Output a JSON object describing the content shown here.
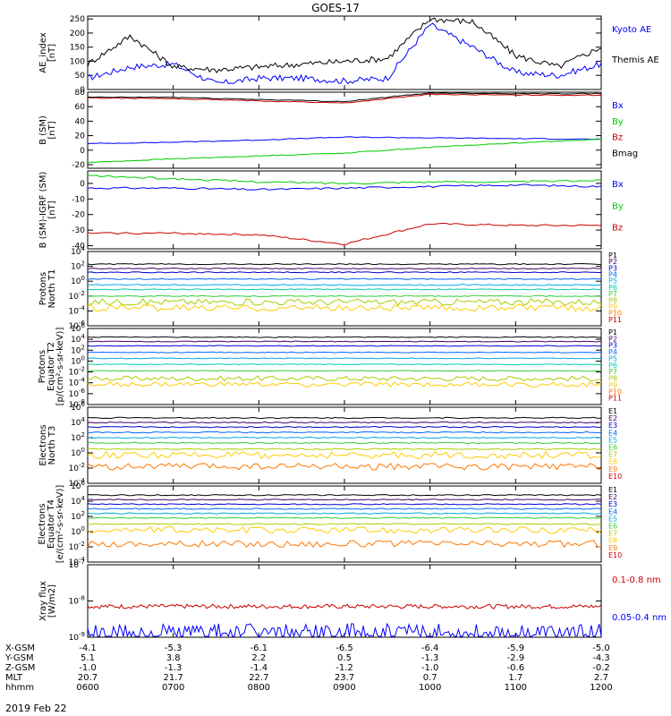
{
  "title": "GOES-17",
  "date": "2019 Feb 22",
  "colors": {
    "axis": "#000000",
    "black": "#000000",
    "blue": "#0000ff",
    "red": "#cc0000",
    "green": "#00cc00"
  },
  "x_axis": {
    "range": [
      "0600",
      "1200"
    ],
    "hhmm": [
      "0600",
      "0700",
      "0800",
      "0900",
      "1000",
      "1100",
      "1200"
    ],
    "rows": [
      {
        "label": "X-GSM",
        "values": [
          "-4.1",
          "-5.3",
          "-6.1",
          "-6.5",
          "-6.4",
          "-5.9",
          "-5.0"
        ]
      },
      {
        "label": "Y-GSM",
        "values": [
          "5.1",
          "3.8",
          "2.2",
          "0.5",
          "-1.3",
          "-2.9",
          "-4.3"
        ]
      },
      {
        "label": "Z-GSM",
        "values": [
          "-1.0",
          "-1.3",
          "-1.4",
          "-1.2",
          "-1.0",
          "-0.6",
          "-0.2"
        ]
      },
      {
        "label": "MLT",
        "values": [
          "20.7",
          "21.7",
          "22.7",
          "23.7",
          "0.7",
          "1.7",
          "2.7"
        ]
      },
      {
        "label": "hhmm",
        "values": [
          "0600",
          "0700",
          "0800",
          "0900",
          "1000",
          "1100",
          "1200"
        ]
      }
    ]
  },
  "chart_data": [
    {
      "type": "line",
      "ylabel": [
        "AE_index",
        "[nT]"
      ],
      "ylim": [
        0,
        260
      ],
      "yticks": [
        "0",
        "50",
        "100",
        "150",
        "200",
        "250"
      ],
      "x": [
        "0600",
        "0630",
        "0700",
        "0730",
        "0800",
        "0830",
        "0900",
        "0930",
        "1000",
        "1030",
        "1100",
        "1130",
        "1200"
      ],
      "series": [
        {
          "name": "Kyoto AE",
          "color": "#0000ff",
          "values": [
            40,
            80,
            90,
            20,
            40,
            40,
            30,
            40,
            230,
            150,
            60,
            50,
            90
          ]
        },
        {
          "name": "Themis AE",
          "color": "#000000",
          "values": [
            90,
            190,
            80,
            70,
            80,
            90,
            100,
            110,
            250,
            240,
            120,
            80,
            150
          ]
        }
      ]
    },
    {
      "type": "line",
      "ylabel": [
        "B (SM)",
        "[nT]"
      ],
      "ylim": [
        -25,
        80
      ],
      "yticks": [
        "-20",
        "0",
        "20",
        "40",
        "60",
        "80"
      ],
      "x": [
        "0600",
        "0700",
        "0800",
        "0900",
        "1000",
        "1100",
        "1200"
      ],
      "series": [
        {
          "name": "Bx",
          "color": "#0000ff",
          "values": [
            9,
            11,
            14,
            18,
            17,
            16,
            15
          ]
        },
        {
          "name": "By",
          "color": "#00cc00",
          "values": [
            -17,
            -12,
            -8,
            -4,
            4,
            10,
            15
          ]
        },
        {
          "name": "Bz",
          "color": "#cc0000",
          "values": [
            72,
            71,
            68,
            65,
            77,
            76,
            76
          ]
        },
        {
          "name": "Bmag",
          "color": "#000000",
          "values": [
            73,
            73,
            70,
            67,
            79,
            78,
            78
          ]
        }
      ]
    },
    {
      "type": "line",
      "ylabel": [
        "B (SM)-IGRF (SM)",
        "[nT]"
      ],
      "ylim": [
        -42,
        8
      ],
      "yticks": [
        "-40",
        "-30",
        "-20",
        "-10",
        "0"
      ],
      "x": [
        "0600",
        "0700",
        "0800",
        "0900",
        "1000",
        "1100",
        "1200"
      ],
      "series": [
        {
          "name": "Bx",
          "color": "#0000ff",
          "values": [
            -3,
            -3,
            -4,
            -3,
            -2,
            -1,
            -2
          ]
        },
        {
          "name": "By",
          "color": "#00cc00",
          "values": [
            5,
            3,
            1,
            0,
            1,
            1,
            2
          ]
        },
        {
          "name": "Bz",
          "color": "#cc0000",
          "values": [
            -32,
            -32,
            -33,
            -39,
            -26,
            -27,
            -27
          ]
        }
      ]
    },
    {
      "type": "line",
      "ylabel": [
        "Protons",
        "North T1"
      ],
      "log_exp_range": [
        -6,
        4
      ],
      "yticks": [
        "10-6",
        "10-4",
        "10-2",
        "100",
        "102",
        "104"
      ],
      "channels": [
        "P1",
        "P2",
        "P3",
        "P4",
        "P5",
        "P6",
        "P7",
        "P8",
        "P9",
        "P10",
        "P11"
      ],
      "levels_log10": [
        2.3,
        1.7,
        1.2,
        0.3,
        -0.5,
        -1.1,
        -2.0,
        -2.8,
        -3.6
      ]
    },
    {
      "type": "line",
      "ylabel": [
        "Protons",
        "Equator T2",
        "[p/(cm²-s-sr-keV)]"
      ],
      "log_exp_range": [
        -8,
        6
      ],
      "yticks": [
        "10-8",
        "10-6",
        "10-4",
        "10-2",
        "100",
        "102",
        "104",
        "106"
      ],
      "channels": [
        "P1",
        "P2",
        "P3",
        "P4",
        "P5",
        "P6",
        "P7",
        "P8",
        "P9",
        "P10",
        "P11"
      ],
      "levels_log10": [
        4.4,
        3.6,
        2.8,
        1.6,
        0.5,
        -0.6,
        -1.8,
        -3.2,
        -4.3
      ]
    },
    {
      "type": "line",
      "ylabel": [
        "Electrons",
        "North T3"
      ],
      "log_exp_range": [
        -4,
        6
      ],
      "yticks": [
        "10-4",
        "10-2",
        "100",
        "102",
        "104",
        "106"
      ],
      "channels": [
        "E1",
        "E2",
        "E3",
        "E4",
        "E5",
        "E6",
        "E7",
        "E8",
        "E9",
        "E10"
      ],
      "levels_log10": [
        4.6,
        4.0,
        3.4,
        2.7,
        2.0,
        1.3,
        0.5,
        -0.3,
        -1.8
      ]
    },
    {
      "type": "line",
      "ylabel": [
        "Electrons",
        "Equator T4",
        "[e/(cm²-s-sr-keV)]"
      ],
      "log_exp_range": [
        -4,
        6
      ],
      "yticks": [
        "10-4",
        "10-2",
        "100",
        "102",
        "104",
        "106"
      ],
      "channels": [
        "E1",
        "E2",
        "E3",
        "E4",
        "E5",
        "E6",
        "E7",
        "E8",
        "E9",
        "E10"
      ],
      "levels_log10": [
        4.8,
        4.2,
        3.6,
        3.0,
        2.4,
        1.8,
        1.0,
        0.2,
        -1.6
      ]
    },
    {
      "type": "line",
      "ylabel": [
        "Xray flux",
        "[W/m2]"
      ],
      "log_exp_range": [
        -9,
        -7
      ],
      "yticks": [
        "10-9",
        "10-8",
        "10-7"
      ],
      "series": [
        {
          "name": "0.1-0.8 nm",
          "color": "#cc0000",
          "level_log10": -8.15
        },
        {
          "name": "0.05-0.4 nm",
          "color": "#0000ff",
          "level_log10": -8.9
        }
      ]
    }
  ]
}
